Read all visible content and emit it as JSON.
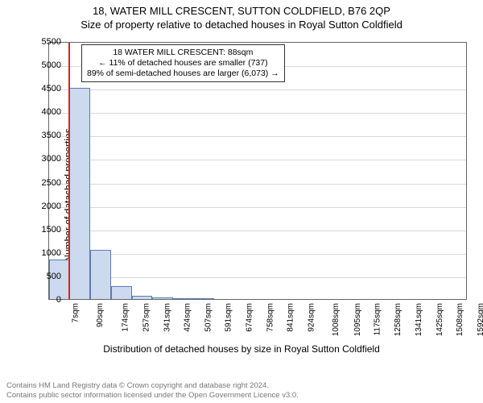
{
  "title_line1": "18, WATER MILL CRESCENT, SUTTON COLDFIELD, B76 2QP",
  "title_line2": "Size of property relative to detached houses in Royal Sutton Coldfield",
  "y_axis_label": "Number of detached properties",
  "x_axis_label": "Distribution of detached houses by size in Royal Sutton Coldfield",
  "chart": {
    "type": "histogram",
    "background_color": "#ffffff",
    "plot_border_color": "#666666",
    "grid_color": "#d9d9d9",
    "bar_fill": "#ccd9ee",
    "bar_border": "#5b7bb3",
    "marker_color": "#d8232a",
    "x_min_sqm": 7,
    "x_max_sqm": 1700,
    "x_ticks": [
      {
        "v": 7,
        "label": "7sqm"
      },
      {
        "v": 90,
        "label": "90sqm"
      },
      {
        "v": 174,
        "label": "174sqm"
      },
      {
        "v": 257,
        "label": "257sqm"
      },
      {
        "v": 341,
        "label": "341sqm"
      },
      {
        "v": 424,
        "label": "424sqm"
      },
      {
        "v": 507,
        "label": "507sqm"
      },
      {
        "v": 591,
        "label": "591sqm"
      },
      {
        "v": 674,
        "label": "674sqm"
      },
      {
        "v": 758,
        "label": "758sqm"
      },
      {
        "v": 841,
        "label": "841sqm"
      },
      {
        "v": 924,
        "label": "924sqm"
      },
      {
        "v": 1008,
        "label": "1008sqm"
      },
      {
        "v": 1095,
        "label": "1095sqm"
      },
      {
        "v": 1175,
        "label": "1175sqm"
      },
      {
        "v": 1258,
        "label": "1258sqm"
      },
      {
        "v": 1341,
        "label": "1341sqm"
      },
      {
        "v": 1425,
        "label": "1425sqm"
      },
      {
        "v": 1508,
        "label": "1508sqm"
      },
      {
        "v": 1592,
        "label": "1592sqm"
      },
      {
        "v": 1675,
        "label": "1675sqm"
      }
    ],
    "y_min": 0,
    "y_max": 5500,
    "y_tick_step": 500,
    "bars": [
      {
        "x0": 7,
        "x1": 90,
        "count": 850
      },
      {
        "x0": 90,
        "x1": 174,
        "count": 4500
      },
      {
        "x0": 174,
        "x1": 257,
        "count": 1050
      },
      {
        "x0": 257,
        "x1": 341,
        "count": 280
      },
      {
        "x0": 341,
        "x1": 424,
        "count": 70
      },
      {
        "x0": 424,
        "x1": 507,
        "count": 35
      },
      {
        "x0": 507,
        "x1": 591,
        "count": 15
      },
      {
        "x0": 591,
        "x1": 674,
        "count": 15
      }
    ],
    "marker_sqm": 88
  },
  "annotation": {
    "line1": "18 WATER MILL CRESCENT: 88sqm",
    "line2": "← 11% of detached houses are smaller (737)",
    "line3": "89% of semi-detached houses are larger (6,073) →"
  },
  "footer_line1": "Contains HM Land Registry data © Crown copyright and database right 2024.",
  "footer_line2": "Contains public sector information licensed under the Open Government Licence v3.0."
}
